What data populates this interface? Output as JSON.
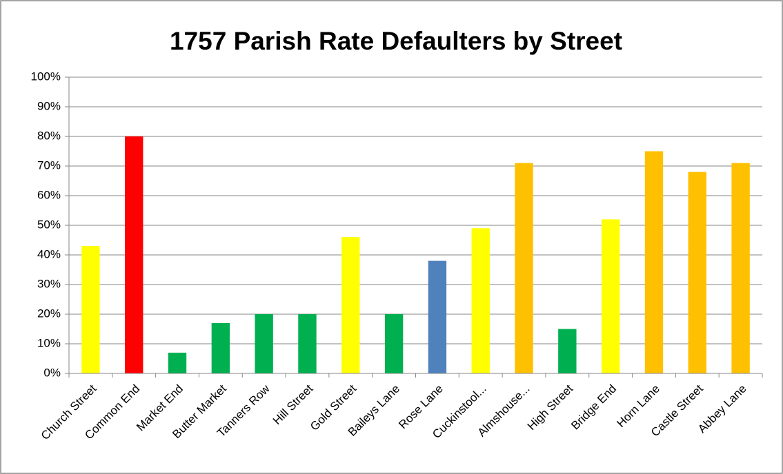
{
  "chart_data": {
    "type": "bar",
    "title": "1757 Parish Rate Defaulters  by Street",
    "categories": [
      "Church Street",
      "Common End",
      "Market End",
      "Butter Market",
      "Tanners Row",
      "Hill Street",
      "Gold Street",
      "Baileys Lane",
      "Rose Lane",
      "Cuckinstool...",
      "Almshouse...",
      "High Street",
      "Bridge End",
      "Horn Lane",
      "Castle Street",
      "Abbey Lane"
    ],
    "values": [
      43,
      80,
      7,
      17,
      20,
      20,
      46,
      20,
      38,
      49,
      71,
      15,
      52,
      75,
      68,
      71
    ],
    "colors": [
      "#ffff00",
      "#ff0000",
      "#00b050",
      "#00b050",
      "#00b050",
      "#00b050",
      "#ffff00",
      "#00b050",
      "#4f81bd",
      "#ffff00",
      "#ffc000",
      "#00b050",
      "#ffff00",
      "#ffc000",
      "#ffc000",
      "#ffc000"
    ],
    "ylim": [
      0,
      100
    ],
    "yticks": [
      {
        "value": 0,
        "label": "0%"
      },
      {
        "value": 10,
        "label": "10%"
      },
      {
        "value": 20,
        "label": "20%"
      },
      {
        "value": 30,
        "label": "30%"
      },
      {
        "value": 40,
        "label": "40%"
      },
      {
        "value": 50,
        "label": "50%"
      },
      {
        "value": 60,
        "label": "60%"
      },
      {
        "value": 70,
        "label": "70%"
      },
      {
        "value": 80,
        "label": "80%"
      },
      {
        "value": 90,
        "label": "90%"
      },
      {
        "value": 100,
        "label": "100%"
      }
    ],
    "grid": true
  }
}
